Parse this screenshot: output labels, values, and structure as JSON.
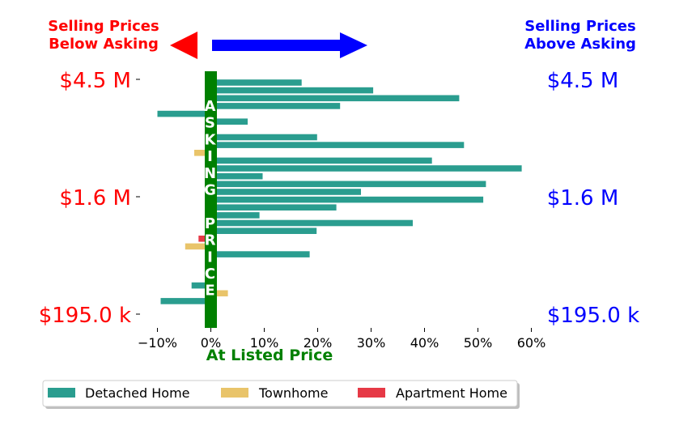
{
  "chart_data": {
    "type": "bar",
    "orientation": "horizontal",
    "header_left": [
      "Selling Prices",
      "Below Asking"
    ],
    "header_right": [
      "Selling Prices",
      "Above Asking"
    ],
    "left_price_labels": [
      "$4.5 M",
      "$1.6 M",
      "$195.0 k"
    ],
    "right_price_labels": [
      "$4.5 M",
      "$1.6 M",
      "$195.0 k"
    ],
    "zero_line_text": [
      "A",
      "S",
      "K",
      "I",
      "N",
      "G",
      "",
      "P",
      "R",
      "I",
      "C",
      "E"
    ],
    "xlabel": "At Listed Price",
    "x_ticks": [
      -10,
      0,
      10,
      20,
      30,
      40,
      50,
      60
    ],
    "x_tick_labels": [
      "−10%",
      "0%",
      "10%",
      "20%",
      "30%",
      "40%",
      "50%",
      "60%"
    ],
    "xlim": [
      -13,
      60
    ],
    "colors": {
      "detached": "#2a9d8f",
      "townhome": "#e9c46a",
      "apartment": "#e63946",
      "below": "#ff0000",
      "above": "#0000ff",
      "asking_bar": "#008000"
    },
    "legend": [
      {
        "label": "Detached Home",
        "color": "#2a9d8f"
      },
      {
        "label": "Townhome",
        "color": "#e9c46a"
      },
      {
        "label": "Apartment Home",
        "color": "#e63946"
      }
    ],
    "legend_position": "bottom",
    "bars": [
      {
        "type": "detached",
        "value": 17.0
      },
      {
        "type": "detached",
        "value": 30.4
      },
      {
        "type": "detached",
        "value": 46.5
      },
      {
        "type": "detached",
        "value": 24.2
      },
      {
        "type": "detached",
        "value": -10.0
      },
      {
        "type": "detached",
        "value": 6.9
      },
      {
        "type": "none",
        "value": 0
      },
      {
        "type": "detached",
        "value": 19.9
      },
      {
        "type": "detached",
        "value": 47.4
      },
      {
        "type": "townhome",
        "value": -3.1
      },
      {
        "type": "detached",
        "value": 41.4
      },
      {
        "type": "detached",
        "value": 58.2
      },
      {
        "type": "detached",
        "value": 9.7
      },
      {
        "type": "detached",
        "value": 51.5
      },
      {
        "type": "detached",
        "value": 28.1
      },
      {
        "type": "detached",
        "value": 51.0
      },
      {
        "type": "detached",
        "value": 23.5
      },
      {
        "type": "detached",
        "value": 9.1
      },
      {
        "type": "detached",
        "value": 37.8
      },
      {
        "type": "detached",
        "value": 19.8
      },
      {
        "type": "apartment",
        "value": -2.3
      },
      {
        "type": "townhome",
        "value": -4.8
      },
      {
        "type": "detached",
        "value": 18.5
      },
      {
        "type": "none",
        "value": 0
      },
      {
        "type": "none",
        "value": 0
      },
      {
        "type": "none",
        "value": 0
      },
      {
        "type": "detached",
        "value": -3.6
      },
      {
        "type": "townhome",
        "value": 3.2
      },
      {
        "type": "detached",
        "value": -9.4
      }
    ]
  }
}
